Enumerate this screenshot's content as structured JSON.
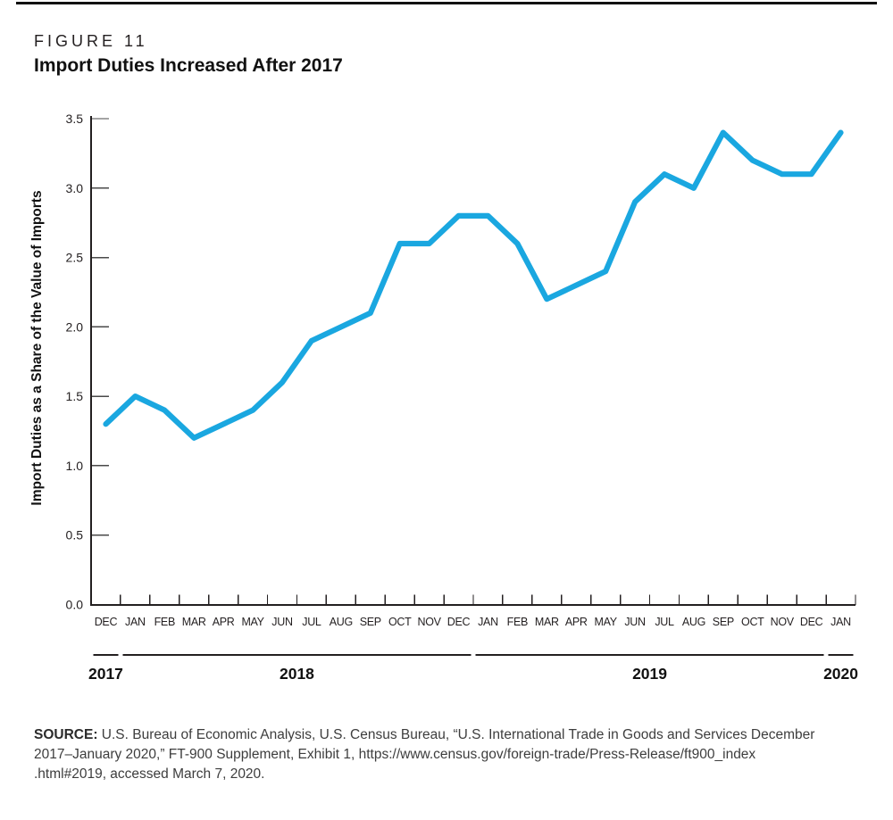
{
  "figure": {
    "label": "FIGURE 11",
    "title": "Import Duties Increased After 2017"
  },
  "chart_data": {
    "type": "line",
    "title": "Import Duties Increased After 2017",
    "xlabel": "",
    "ylabel": "Import Duties as a Share of the Value of Imports",
    "ylim": [
      0,
      3.5
    ],
    "yticks": [
      "0.0",
      "0.5",
      "1.0",
      "1.5",
      "2.0",
      "2.5",
      "3.0",
      "3.5"
    ],
    "grid": "off",
    "legend": "none",
    "line_color": "#1AA7E0",
    "axis_color": "#231f20",
    "months": [
      "DEC",
      "JAN",
      "FEB",
      "MAR",
      "APR",
      "MAY",
      "JUN",
      "JUL",
      "AUG",
      "SEP",
      "OCT",
      "NOV",
      "DEC",
      "JAN",
      "FEB",
      "MAR",
      "APR",
      "MAY",
      "JUN",
      "JUL",
      "AUG",
      "SEP",
      "OCT",
      "NOV",
      "DEC",
      "JAN"
    ],
    "values": [
      1.3,
      1.5,
      1.4,
      1.2,
      1.3,
      1.4,
      1.6,
      1.9,
      2.0,
      2.1,
      2.6,
      2.6,
      2.8,
      2.8,
      2.6,
      2.2,
      2.3,
      2.4,
      2.9,
      3.1,
      3.0,
      3.4,
      3.2,
      3.1,
      3.1,
      3.4
    ],
    "years": [
      {
        "label": "2017",
        "start_index": 0,
        "end_index": 0
      },
      {
        "label": "2018",
        "start_index": 1,
        "end_index": 12
      },
      {
        "label": "2019",
        "start_index": 13,
        "end_index": 24
      },
      {
        "label": "2020",
        "start_index": 25,
        "end_index": 25
      }
    ]
  },
  "source": {
    "label": "SOURCE:",
    "lines": [
      "U.S. Bureau of Economic Analysis, U.S. Census Bureau, “U.S. International Trade in Goods and Services December",
      "2017–January 2020,” FT-900 Supplement, Exhibit 1, https://www.census.gov/foreign-trade/Press-Release/ft900_index",
      ".html#2019, accessed March 7, 2020."
    ]
  }
}
